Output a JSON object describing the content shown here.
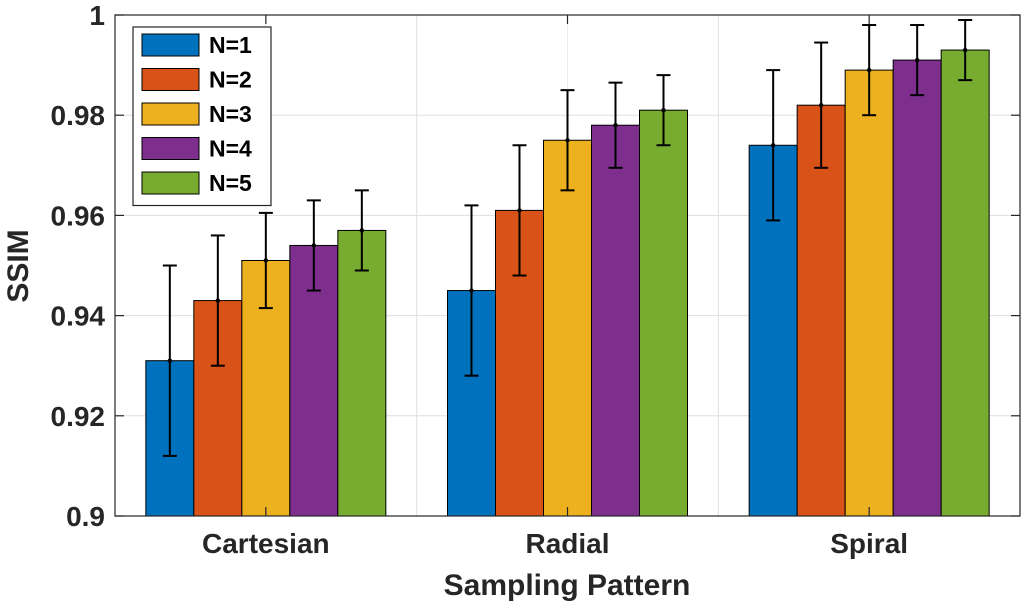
{
  "chart_data": {
    "type": "bar",
    "title": "",
    "xlabel": "Sampling Pattern",
    "ylabel": "SSIM",
    "categories": [
      "Cartesian",
      "Radial",
      "Spiral"
    ],
    "ylim": [
      0.9,
      1.0
    ],
    "yticks": [
      0.9,
      0.92,
      0.94,
      0.96,
      0.98,
      1.0
    ],
    "ytick_labels": [
      "0.9",
      "0.92",
      "0.94",
      "0.96",
      "0.98",
      "1"
    ],
    "grid": true,
    "legend_position": "top-left",
    "series": [
      {
        "name": "N=1",
        "color": "#0072BD",
        "values": [
          0.931,
          0.945,
          0.974
        ],
        "err_low": [
          0.912,
          0.928,
          0.959
        ],
        "err_high": [
          0.95,
          0.962,
          0.989
        ]
      },
      {
        "name": "N=2",
        "color": "#D95319",
        "values": [
          0.943,
          0.961,
          0.982
        ],
        "err_low": [
          0.93,
          0.948,
          0.9695
        ],
        "err_high": [
          0.956,
          0.974,
          0.9945
        ]
      },
      {
        "name": "N=3",
        "color": "#EDB120",
        "values": [
          0.951,
          0.975,
          0.989
        ],
        "err_low": [
          0.9415,
          0.965,
          0.98
        ],
        "err_high": [
          0.9605,
          0.985,
          0.998
        ]
      },
      {
        "name": "N=4",
        "color": "#7E2F8E",
        "values": [
          0.954,
          0.978,
          0.991
        ],
        "err_low": [
          0.945,
          0.9695,
          0.984
        ],
        "err_high": [
          0.963,
          0.9865,
          0.998
        ]
      },
      {
        "name": "N=5",
        "color": "#77AC30",
        "values": [
          0.957,
          0.981,
          0.993
        ],
        "err_low": [
          0.949,
          0.974,
          0.987
        ],
        "err_high": [
          0.965,
          0.988,
          0.999
        ]
      }
    ]
  }
}
